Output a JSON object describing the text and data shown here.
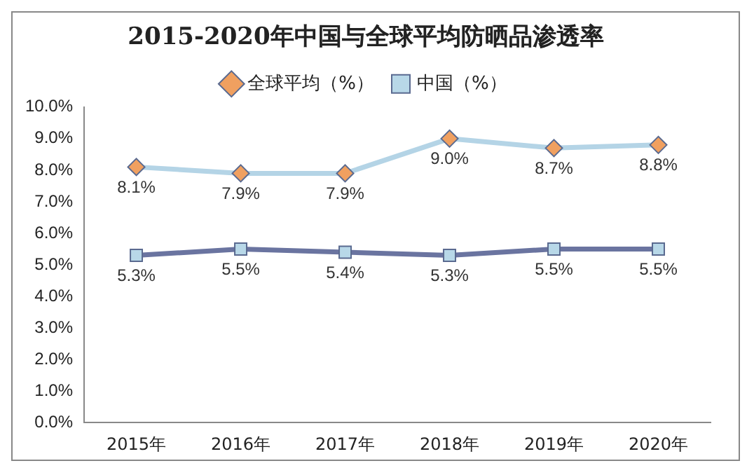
{
  "chart_data": {
    "type": "line",
    "title": "2015-2020年中国与全球平均防晒品渗透率",
    "categories": [
      "2015年",
      "2016年",
      "2017年",
      "2018年",
      "2019年",
      "2020年"
    ],
    "series": [
      {
        "name": "全球平均（%）",
        "color": "#b4d4e6",
        "marker": "diamond",
        "colors": [
          "#f0a060",
          "#f0a060",
          "#f0a060",
          "#f0a060",
          "#f0a060",
          "#f0a060"
        ],
        "values": [
          8.1,
          7.9,
          7.9,
          9.0,
          8.7,
          8.8
        ],
        "value_labels": [
          "8.1%",
          "7.9%",
          "7.9%",
          "9.0%",
          "8.7%",
          "8.8%"
        ]
      },
      {
        "name": "中国（%）",
        "color": "#6a74a0",
        "marker": "square",
        "colors": [
          "#b8d8e8",
          "#b8d8e8",
          "#b8d8e8",
          "#b8d8e8",
          "#b8d8e8",
          "#b8d8e8"
        ],
        "values": [
          5.3,
          5.5,
          5.4,
          5.3,
          5.5,
          5.5
        ],
        "value_labels": [
          "5.3%",
          "5.5%",
          "5.4%",
          "5.3%",
          "5.5%",
          "5.5%"
        ]
      }
    ],
    "ylim": [
      0,
      10
    ],
    "yticks": [
      {
        "value": 0,
        "label": "0.0%"
      },
      {
        "value": 1,
        "label": "1.0%"
      },
      {
        "value": 2,
        "label": "2.0%"
      },
      {
        "value": 3,
        "label": "3.0%"
      },
      {
        "value": 4,
        "label": "4.0%"
      },
      {
        "value": 5,
        "label": "5.0%"
      },
      {
        "value": 6,
        "label": "6.0%"
      },
      {
        "value": 7,
        "label": "7.0%"
      },
      {
        "value": 8,
        "label": "8.0%"
      },
      {
        "value": 9,
        "label": "9.0%"
      },
      {
        "value": 10,
        "label": "10.0%"
      }
    ],
    "grid": false,
    "legend": "top"
  }
}
